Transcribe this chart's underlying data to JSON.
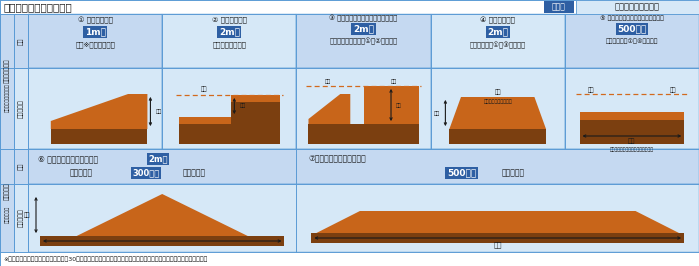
{
  "title": "届出を要する工事の規模",
  "badge_text": "青文字",
  "badge_label": "特定盛土等規制区域",
  "footer": "※「崖」とは、地表面が水平面に対し30度を超える角度をなす土地で、硬岩盤（風化の著しいものを除く）以外のもの",
  "bg_light": "#d6e8f7",
  "bg_mid": "#c5d9f1",
  "bg_white": "#ffffff",
  "border_color": "#5b9bd5",
  "blue_hl": "#2e5fa3",
  "orange_hl": "#e07020",
  "soil_dark": "#7B3F10",
  "soil_mid": "#A0522D",
  "soil_light": "#CD7F32",
  "soil_orange": "#C8651A",
  "dark_text": "#1a1a1a",
  "dotted_color": "#D2691E",
  "col1_l1": "① 盛土で高さが",
  "col1_hl": "1m超",
  "col1_l2": "の崖※を生ずるもの",
  "col2_l1": "② 切土で高さが",
  "col2_hl": "2m超",
  "col2_l2": "の崖を生ずるもの",
  "col3_l1": "③ 盛土と切土を同時に行い、高さが",
  "col3_hl": "2m超",
  "col3_l2": "の崖を生ずるもの（①、②を除く）",
  "col4_l1": "④ 盛土で高さが",
  "col4_hl": "2m超",
  "col4_l2": "となるもの（①、③を除く）",
  "col5_l1": "⑤ 盛土又は切土をする土地の面積が",
  "col5_hl": "500㎡超",
  "col5_l2": "となるもの（①～④を除く）",
  "b6_pre": "⑥ 最大時に堆積する高さが",
  "b6_hl1": "2m超",
  "b6_mid": "かつ面積が",
  "b6_hl2": "300㎡超",
  "b6_post": "となるもの",
  "b7_pre": "⑦最大時に堆積する面積が",
  "b7_hl": "500㎡超",
  "b7_post": "となるもの",
  "lbl_top1": "土地の形質変更",
  "lbl_top2": "（土地の形質の変更）",
  "lbl_bot1": "土石の堆積",
  "lbl_bot2": "（一時堆積）",
  "lbl_req": "要件",
  "lbl_img": "イメージ図",
  "lbl_chido": "盛土",
  "lbl_kirido": "切土",
  "lbl_takasa": "高さ",
  "lbl_menseki": "面積",
  "lbl_gake_nashi": "（崖を生じないもの）",
  "lbl_col5_note": "（盛土又は切土のみの場合も含む）"
}
